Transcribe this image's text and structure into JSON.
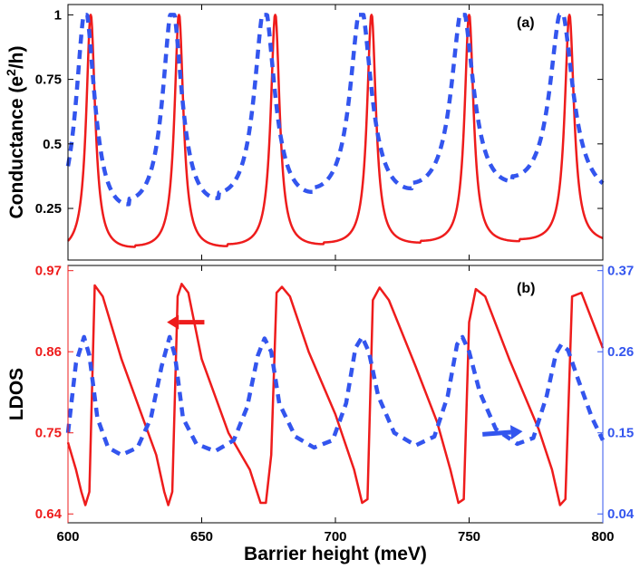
{
  "chart_data": [
    {
      "panel": "a",
      "type": "line",
      "panel_label": "(a)",
      "ylabel_main": "Conductance (e",
      "ylabel_sup": "2",
      "ylabel_tail": "/h)",
      "xlim": [
        600,
        800
      ],
      "ylim": [
        0.05,
        1.04
      ],
      "yticks": [
        0.25,
        0.5,
        0.75,
        1
      ],
      "ytick_labels": [
        "0.25",
        "0.5",
        "0.75",
        "1"
      ],
      "series": [
        {
          "name": "solid",
          "color": "#ee1c1c",
          "style": "solid",
          "resonances": [
            {
              "x0": 608.5,
              "w": 2.0,
              "floor": 0.072
            },
            {
              "x0": 641.5,
              "w": 2.0,
              "floor": 0.078
            },
            {
              "x0": 677.5,
              "w": 2.0,
              "floor": 0.086
            },
            {
              "x0": 713.5,
              "w": 2.0,
              "floor": 0.093
            },
            {
              "x0": 750.0,
              "w": 2.0,
              "floor": 0.1
            },
            {
              "x0": 787.5,
              "w": 2.1,
              "floor": 0.108
            }
          ]
        },
        {
          "name": "dashed",
          "color": "#3355ee",
          "style": "dashed",
          "resonances": [
            {
              "x0": 606.5,
              "w": 4.2,
              "floor": 0.145
            },
            {
              "x0": 639.0,
              "w": 4.3,
              "floor": 0.17
            },
            {
              "x0": 673.5,
              "w": 4.6,
              "floor": 0.195
            },
            {
              "x0": 709.5,
              "w": 4.8,
              "floor": 0.215
            },
            {
              "x0": 747.5,
              "w": 5.0,
              "floor": 0.24
            },
            {
              "x0": 784.5,
              "w": 5.2,
              "floor": 0.262
            }
          ]
        }
      ]
    },
    {
      "panel": "b",
      "type": "line",
      "panel_label": "(b)",
      "xlabel": "Barrier height (meV)",
      "ylabel": "LDOS",
      "xlim": [
        600,
        800
      ],
      "xticks": [
        600,
        650,
        700,
        750,
        800
      ],
      "xtick_labels": [
        "600",
        "650",
        "700",
        "750",
        "800"
      ],
      "ylim_left": [
        0.628,
        0.977
      ],
      "yticks_left": [
        0.64,
        0.75,
        0.86,
        0.97
      ],
      "ytick_labels_left": [
        "0.64",
        "0.75",
        "0.86",
        "0.97"
      ],
      "ylim_right": [
        0.028,
        0.377
      ],
      "yticks_right": [
        0.04,
        0.15,
        0.26,
        0.37
      ],
      "ytick_labels_right": [
        "0.04",
        "0.15",
        "0.26",
        "0.37"
      ],
      "left_axis_color": "#ee1c1c",
      "right_axis_color": "#3355ee",
      "series": [
        {
          "name": "solid-left-axis",
          "axis": "left",
          "color": "#ee1c1c",
          "style": "solid",
          "x": [
            600,
            603,
            605,
            606.5,
            608,
            610,
            613,
            620,
            628,
            633,
            636,
            637.5,
            639,
            641,
            642.5,
            645,
            650,
            660,
            668,
            672,
            674,
            676,
            678,
            680,
            683,
            690,
            700,
            707,
            710,
            712,
            714,
            716.5,
            720,
            730,
            738,
            743,
            746,
            748,
            750,
            752.5,
            756,
            765,
            776,
            781,
            784,
            786,
            788.5,
            792,
            800
          ],
          "y": [
            0.737,
            0.7,
            0.67,
            0.652,
            0.67,
            0.95,
            0.935,
            0.85,
            0.77,
            0.72,
            0.67,
            0.652,
            0.67,
            0.935,
            0.952,
            0.94,
            0.85,
            0.75,
            0.7,
            0.655,
            0.655,
            0.72,
            0.94,
            0.948,
            0.935,
            0.86,
            0.775,
            0.7,
            0.655,
            0.66,
            0.93,
            0.947,
            0.93,
            0.84,
            0.765,
            0.7,
            0.655,
            0.66,
            0.9,
            0.945,
            0.935,
            0.85,
            0.755,
            0.7,
            0.652,
            0.66,
            0.935,
            0.94,
            0.865
          ]
        },
        {
          "name": "dashed-right-axis",
          "axis": "right",
          "color": "#3355ee",
          "style": "dashed",
          "x": [
            600,
            603,
            606,
            608,
            611,
            615,
            620,
            626,
            631,
            635,
            638,
            640,
            643,
            648,
            655,
            662,
            667,
            671,
            673.5,
            676,
            679,
            685,
            692,
            699,
            704,
            707.5,
            710,
            712.5,
            716,
            722,
            730,
            737,
            742,
            745.5,
            747.5,
            750,
            754,
            760,
            768,
            774,
            779,
            782.5,
            784.5,
            787,
            791,
            796,
            800
          ],
          "y": [
            0.15,
            0.245,
            0.28,
            0.255,
            0.17,
            0.13,
            0.12,
            0.13,
            0.17,
            0.24,
            0.28,
            0.255,
            0.17,
            0.135,
            0.125,
            0.14,
            0.185,
            0.255,
            0.278,
            0.26,
            0.19,
            0.145,
            0.13,
            0.14,
            0.19,
            0.265,
            0.28,
            0.26,
            0.2,
            0.15,
            0.133,
            0.145,
            0.2,
            0.27,
            0.28,
            0.26,
            0.205,
            0.155,
            0.135,
            0.143,
            0.2,
            0.258,
            0.27,
            0.262,
            0.22,
            0.17,
            0.14
          ]
        }
      ],
      "annotations": [
        {
          "name": "left-arrow",
          "color": "#ee1c1c",
          "direction": "left",
          "from": [
            651,
            0.9
          ],
          "to": [
            637,
            0.9
          ],
          "points_to_axis": "left"
        },
        {
          "name": "right-arrow",
          "color": "#3355ee",
          "direction": "right",
          "from": [
            755,
            0.748
          ],
          "to": [
            770,
            0.752
          ],
          "points_to_axis": "right"
        }
      ]
    }
  ]
}
